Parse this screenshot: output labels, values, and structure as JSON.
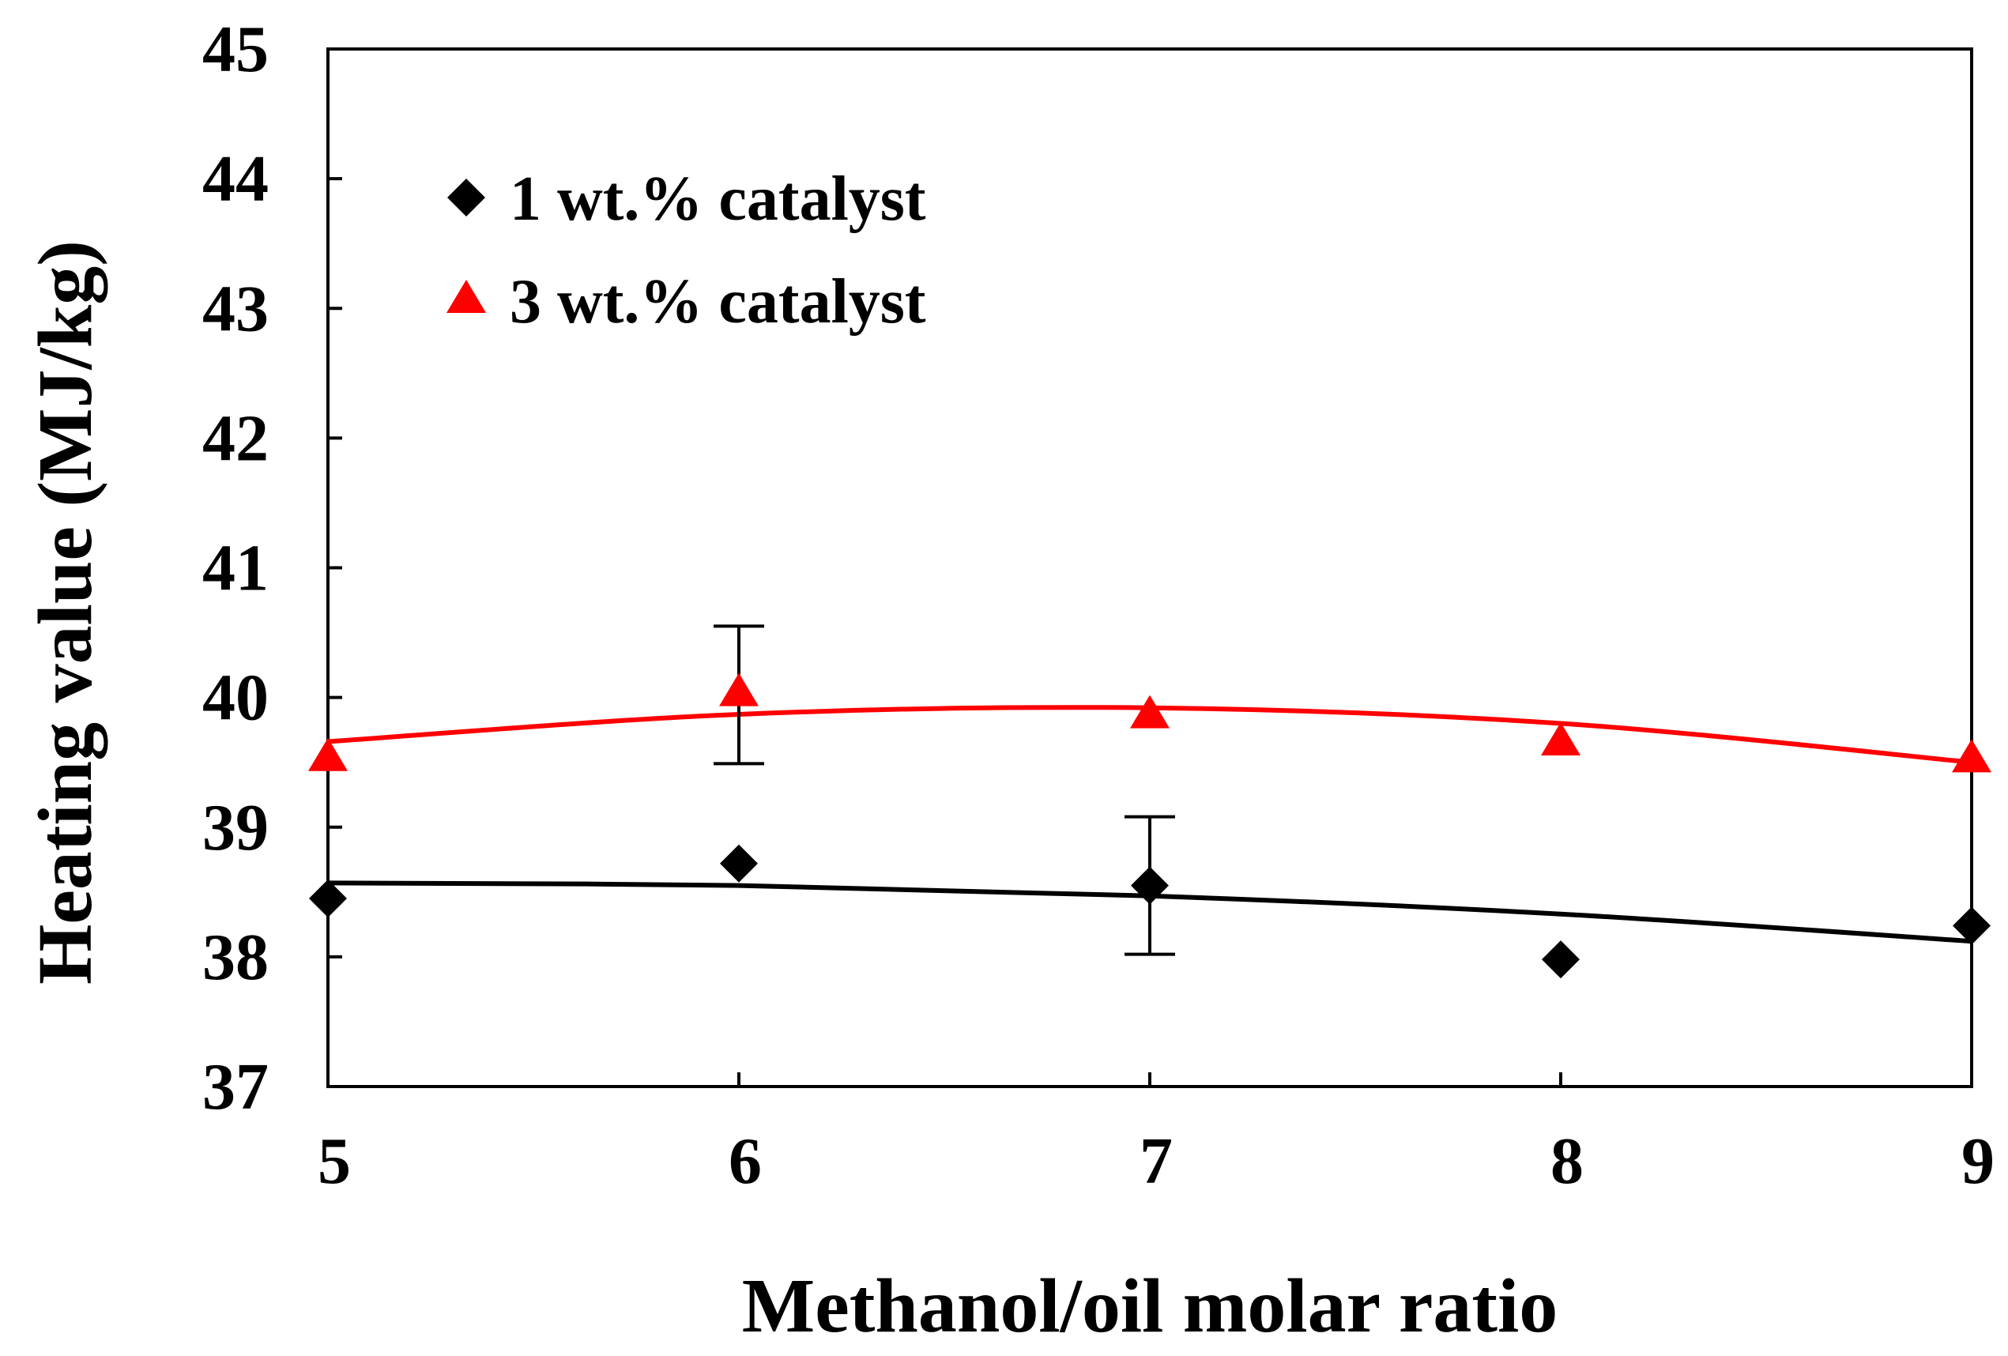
{
  "chart_data": {
    "type": "scatter",
    "title": "",
    "xlabel": "Methanol/oil molar ratio",
    "ylabel": "Heating value (MJ/kg)",
    "xlim": [
      5,
      9
    ],
    "ylim": [
      37,
      45
    ],
    "xticks": [
      "5",
      "6",
      "7",
      "8",
      "9"
    ],
    "yticks": [
      "37",
      "38",
      "39",
      "40",
      "41",
      "42",
      "43",
      "44",
      "45"
    ],
    "grid": false,
    "legend_position": "top-left",
    "series": [
      {
        "name": "1 wt.% catalyst",
        "marker": "diamond",
        "color": "#000000",
        "x": [
          5,
          6,
          7,
          8,
          9
        ],
        "y": [
          38.45,
          38.72,
          38.55,
          37.98,
          38.24
        ],
        "error_bars": [
          {
            "x": 7,
            "low": 38.02,
            "high": 39.08
          }
        ],
        "trend_x": [
          5,
          6,
          7,
          8,
          9
        ],
        "trend_y": [
          38.57,
          38.55,
          38.47,
          38.33,
          38.12
        ]
      },
      {
        "name": "3 wt.% catalyst",
        "marker": "triangle",
        "color": "#ff0000",
        "x": [
          5,
          6,
          7,
          8,
          9
        ],
        "y": [
          39.53,
          40.03,
          39.86,
          39.65,
          39.52
        ],
        "error_bars": [
          {
            "x": 6,
            "low": 39.49,
            "high": 40.55
          }
        ],
        "trend_x": [
          5,
          6,
          7,
          8,
          9
        ],
        "trend_y": [
          39.66,
          39.87,
          39.92,
          39.8,
          39.5
        ]
      }
    ]
  }
}
